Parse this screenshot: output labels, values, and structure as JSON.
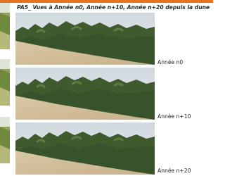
{
  "header": {
    "title": "PA5_ Vues à Année n0, Année n+10, Année n+20 depuis la dune"
  },
  "views": [
    {
      "label": "Année n0"
    },
    {
      "label": "Année n+10"
    },
    {
      "label": "Année n+20"
    }
  ]
}
